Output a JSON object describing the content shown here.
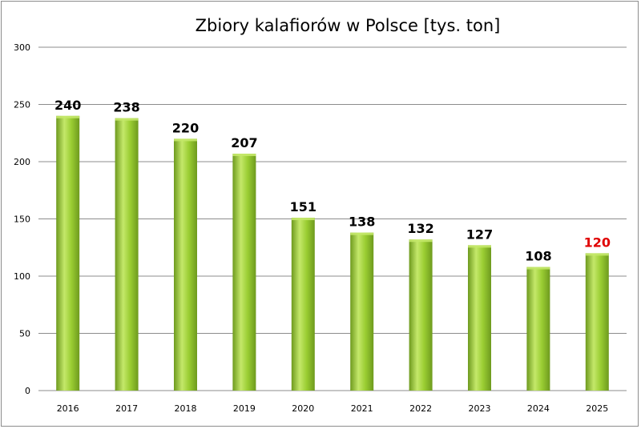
{
  "chart_data": {
    "type": "bar",
    "title": "Zbiory kalafiorów w Polsce [tys. ton]",
    "xlabel": "",
    "ylabel": "",
    "categories": [
      "2016",
      "2017",
      "2018",
      "2019",
      "2020",
      "2021",
      "2022",
      "2023",
      "2024",
      "2025"
    ],
    "values": [
      240,
      238,
      220,
      207,
      151,
      138,
      132,
      127,
      108,
      120
    ],
    "value_labels": [
      "240",
      "238",
      "220",
      "207",
      "151",
      "138",
      "132",
      "127",
      "108",
      "120"
    ],
    "ylim": [
      0,
      300
    ],
    "yticks": [
      "0",
      "50",
      "100",
      "150",
      "200",
      "250",
      "300"
    ],
    "grid": true,
    "legend": "none",
    "colors": {
      "bar_light": "#c4e86a",
      "bar_mid": "#9acd32",
      "bar_dark": "#6e9a1e",
      "label": "#000000",
      "label_highlight": "#e00000",
      "grid": "#8c8c8c"
    },
    "highlight_index": 9
  }
}
